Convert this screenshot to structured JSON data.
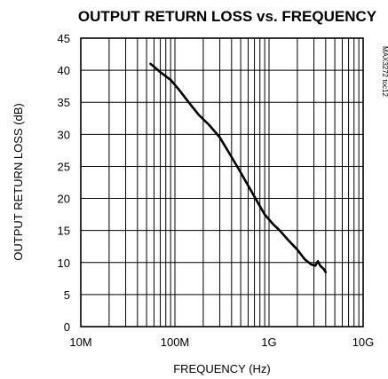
{
  "chart_data": {
    "type": "line",
    "title": "OUTPUT RETURN LOSS vs. FREQUENCY",
    "xlabel": "FREQUENCY (Hz)",
    "ylabel": "OUTPUT RETURN LOSS (dB)",
    "tag": "MAX3272 toc12",
    "x_scale": "log",
    "xlim": [
      10000000,
      10000000000
    ],
    "ylim": [
      0,
      45
    ],
    "x_ticks": [
      {
        "value": 10000000,
        "label": "10M"
      },
      {
        "value": 100000000,
        "label": "100M"
      },
      {
        "value": 1000000000,
        "label": "1G"
      },
      {
        "value": 10000000000,
        "label": "10G"
      }
    ],
    "y_ticks": [
      0,
      5,
      10,
      15,
      20,
      25,
      30,
      35,
      40,
      45
    ],
    "grid": true,
    "legend": "none",
    "series": [
      {
        "x": [
          55000000,
          70000000,
          90000000,
          110000000,
          140000000,
          180000000,
          230000000,
          300000000,
          380000000,
          480000000,
          600000000,
          750000000,
          900000000,
          1100000000,
          1300000000,
          1600000000,
          2000000000,
          2400000000,
          2800000000,
          3100000000,
          3300000000,
          3500000000,
          3800000000,
          4000000000
        ],
        "y": [
          41,
          39.7,
          38.5,
          37,
          35,
          33,
          31.5,
          29.5,
          27,
          24.5,
          22,
          19.5,
          17.5,
          16,
          15,
          13.5,
          12,
          10.5,
          9.7,
          9.5,
          10.2,
          9.5,
          9,
          8.5
        ]
      }
    ]
  }
}
